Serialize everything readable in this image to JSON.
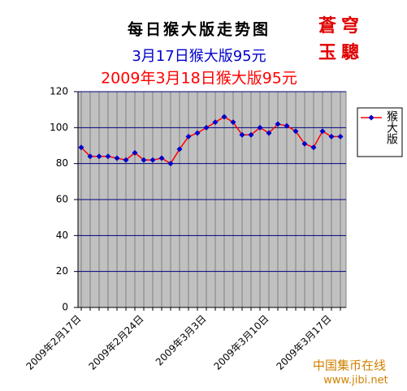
{
  "chart_data": {
    "type": "line",
    "title": "每日猴大版走势图",
    "subtitle": "3月17日猴大版95元",
    "annotation": "2009年3月18日猴大版95元",
    "logo": [
      "蒼穹",
      "玉驄"
    ],
    "watermark": [
      "中国集币在线",
      "www.jibi.net"
    ],
    "categories": [
      "2009年2月17日",
      null,
      null,
      null,
      null,
      null,
      null,
      "2009年2月24日",
      null,
      null,
      null,
      null,
      null,
      null,
      "2009年3月3日",
      null,
      null,
      null,
      null,
      null,
      null,
      "2009年3月10日",
      null,
      null,
      null,
      null,
      null,
      null,
      "2009年3月17日",
      null
    ],
    "series": [
      {
        "name": "猴大版",
        "color": "#ff0000",
        "marker_color": "#0000cc",
        "values": [
          89,
          84,
          84,
          84,
          83,
          82,
          86,
          82,
          82,
          83,
          80,
          88,
          95,
          97,
          100,
          103,
          106,
          103,
          96,
          96,
          100,
          97,
          102,
          101,
          98,
          91,
          89,
          98,
          95,
          95
        ]
      }
    ],
    "ylim": [
      0,
      120
    ],
    "yticks": [
      0,
      20,
      40,
      60,
      80,
      100,
      120
    ],
    "grid": true,
    "legend": "right"
  }
}
